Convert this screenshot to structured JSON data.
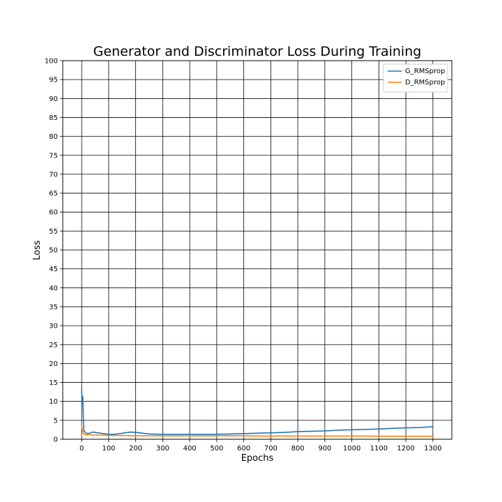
{
  "chart_data": {
    "type": "line",
    "title": "Generator and Discriminator Loss During Training",
    "xlabel": "Epochs",
    "ylabel": "Loss",
    "xlim": [
      -70,
      1370
    ],
    "ylim": [
      0,
      100
    ],
    "xticks": [
      0,
      100,
      200,
      300,
      400,
      500,
      600,
      700,
      800,
      900,
      1000,
      1100,
      1200,
      1300
    ],
    "yticks": [
      0,
      5,
      10,
      15,
      20,
      25,
      30,
      35,
      40,
      45,
      50,
      55,
      60,
      65,
      70,
      75,
      80,
      85,
      90,
      95,
      100
    ],
    "grid": true,
    "legend_position": "top-right",
    "series": [
      {
        "name": "G_RMSprop",
        "color": "#1f77b4",
        "x": [
          0,
          2,
          4,
          6,
          8,
          10,
          15,
          20,
          30,
          40,
          50,
          60,
          80,
          100,
          120,
          140,
          160,
          180,
          200,
          250,
          300,
          350,
          400,
          450,
          500,
          550,
          600,
          650,
          700,
          750,
          800,
          850,
          900,
          950,
          1000,
          1050,
          1100,
          1150,
          1200,
          1250,
          1300
        ],
        "values": [
          13.5,
          9.0,
          11.3,
          6.0,
          2.6,
          2.0,
          1.8,
          1.5,
          1.6,
          1.9,
          1.8,
          1.7,
          1.5,
          1.3,
          1.3,
          1.5,
          1.7,
          1.9,
          1.8,
          1.4,
          1.3,
          1.3,
          1.3,
          1.3,
          1.3,
          1.4,
          1.5,
          1.6,
          1.7,
          1.8,
          2.0,
          2.1,
          2.2,
          2.4,
          2.5,
          2.6,
          2.7,
          2.9,
          3.0,
          3.1,
          3.3
        ]
      },
      {
        "name": "D_RMSprop",
        "color": "#ff7f0e",
        "x": [
          0,
          2,
          4,
          6,
          8,
          10,
          15,
          20,
          30,
          40,
          50,
          60,
          80,
          100,
          150,
          200,
          250,
          300,
          350,
          400,
          450,
          500,
          550,
          600,
          650,
          700,
          750,
          800,
          850,
          900,
          950,
          1000,
          1050,
          1100,
          1150,
          1200,
          1250,
          1300
        ],
        "values": [
          3.8,
          2.6,
          2.0,
          1.6,
          1.4,
          1.3,
          1.2,
          1.2,
          1.2,
          1.1,
          1.1,
          1.1,
          1.1,
          1.0,
          1.0,
          0.9,
          0.9,
          0.9,
          0.9,
          0.9,
          0.9,
          0.9,
          0.9,
          0.9,
          0.85,
          0.85,
          0.85,
          0.85,
          0.85,
          0.85,
          0.85,
          0.85,
          0.85,
          0.8,
          0.8,
          0.8,
          0.8,
          0.8
        ]
      }
    ]
  }
}
